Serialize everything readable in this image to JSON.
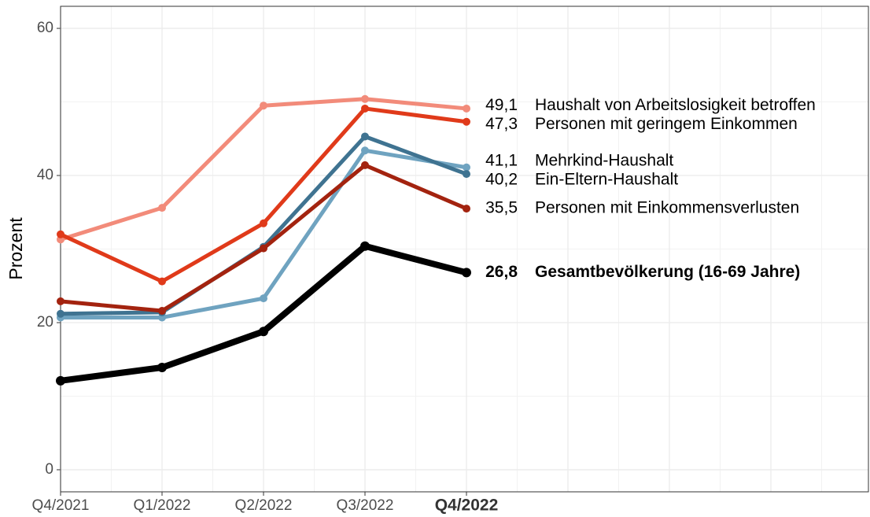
{
  "chart_data": {
    "type": "line",
    "y_label": "Prozent",
    "categories": [
      "Q4/2021",
      "Q1/2022",
      "Q2/2022",
      "Q3/2022",
      "Q4/2022"
    ],
    "ylim": [
      -3,
      63
    ],
    "yticks": [
      0,
      20,
      40,
      60
    ],
    "grid": true,
    "series": [
      {
        "name": "Haushalt von Arbeitslosigkeit betroffen",
        "color": "#f28b7a",
        "values": [
          31.3,
          35.6,
          49.5,
          50.4,
          49.1
        ],
        "value_labels": [
          null,
          null,
          null,
          null,
          "49,1"
        ]
      },
      {
        "name": "Personen mit geringem Einkommen",
        "color": "#e03a1a",
        "values": [
          32.0,
          25.6,
          33.5,
          49.1,
          47.3
        ],
        "value_labels": [
          null,
          null,
          null,
          null,
          "47,3"
        ]
      },
      {
        "name": "Mehrkind-Haushalt",
        "color": "#6fa3c0",
        "values": [
          20.7,
          20.7,
          23.3,
          43.4,
          41.1
        ],
        "value_labels": [
          null,
          null,
          null,
          null,
          "41,1"
        ]
      },
      {
        "name": "Ein-Eltern-Haushalt",
        "color": "#3f7391",
        "values": [
          21.2,
          21.4,
          30.3,
          45.3,
          40.2
        ],
        "value_labels": [
          null,
          null,
          null,
          null,
          "40,2"
        ]
      },
      {
        "name": "Personen mit Einkommensverlusten",
        "color": "#a3230f",
        "values": [
          22.9,
          21.6,
          30.1,
          41.4,
          35.5
        ],
        "value_labels": [
          null,
          null,
          null,
          null,
          "35,5"
        ]
      },
      {
        "name": "Gesamtbevölkerung (16-69 Jahre)",
        "color": "#000000",
        "values": [
          12.1,
          13.9,
          18.8,
          30.4,
          26.8
        ],
        "value_labels": [
          null,
          null,
          null,
          null,
          "26,8"
        ]
      }
    ]
  }
}
